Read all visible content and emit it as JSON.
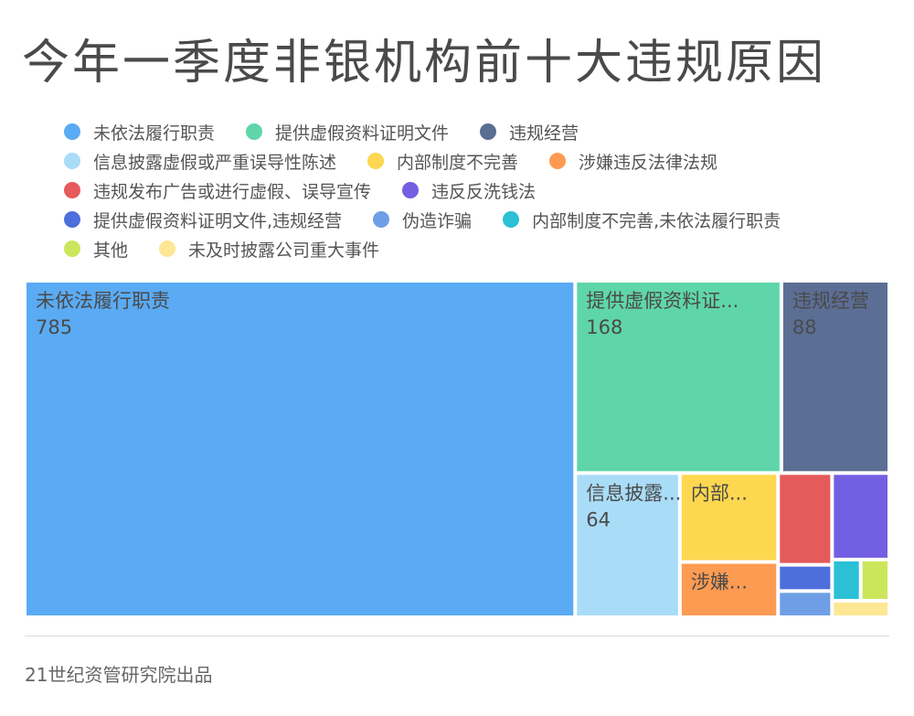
{
  "chart_data": {
    "type": "treemap",
    "title": "今年一季度非银机构前十大违规原因",
    "series": [
      {
        "name": "未依法履行职责",
        "value": 785,
        "color": "#5aabf4",
        "display": "未依法履行职责",
        "show_value": true
      },
      {
        "name": "提供虚假资料证明文件",
        "value": 168,
        "color": "#5fd6a9",
        "display": "提供虚假资料证...",
        "show_value": true
      },
      {
        "name": "违规经营",
        "value": 88,
        "color": "#5b6e94",
        "display": "违规经营",
        "show_value": true
      },
      {
        "name": "信息披露虚假或严重误导性陈述",
        "value": 64,
        "color": "#a9dcf7",
        "display": "信息披露...",
        "show_value": true
      },
      {
        "name": "内部制度不完善",
        "value": 37,
        "color": "#fdd74f",
        "display": "内部...",
        "show_value": false
      },
      {
        "name": "涉嫌违反法律法规",
        "value": 23,
        "color": "#fd9b52",
        "display": "涉嫌...",
        "show_value": false
      },
      {
        "name": "违规发布广告或进行虚假、误导宣传",
        "value": 21,
        "color": "#e55a5a",
        "display": "",
        "show_value": false
      },
      {
        "name": "违反反洗钱法",
        "value": 21,
        "color": "#735fe2",
        "display": "",
        "show_value": false
      },
      {
        "name": "提供虚假资料证明文件,违规经营",
        "value": 6,
        "color": "#4d6fdc",
        "display": "",
        "show_value": false
      },
      {
        "name": "伪造诈骗",
        "value": 6,
        "color": "#6e9fe6",
        "display": "",
        "show_value": false
      },
      {
        "name": "内部制度不完善,未依法履行职责",
        "value": 5,
        "color": "#2bc0d6",
        "display": "",
        "show_value": false
      },
      {
        "name": "其他",
        "value": 5,
        "color": "#cce65c",
        "display": "",
        "show_value": false
      },
      {
        "name": "未及时披露公司重大事件",
        "value": 4,
        "color": "#fde794",
        "display": "",
        "show_value": false
      }
    ],
    "legend_position": "top"
  },
  "footer": {
    "text": "21世纪资管研究院出品"
  }
}
